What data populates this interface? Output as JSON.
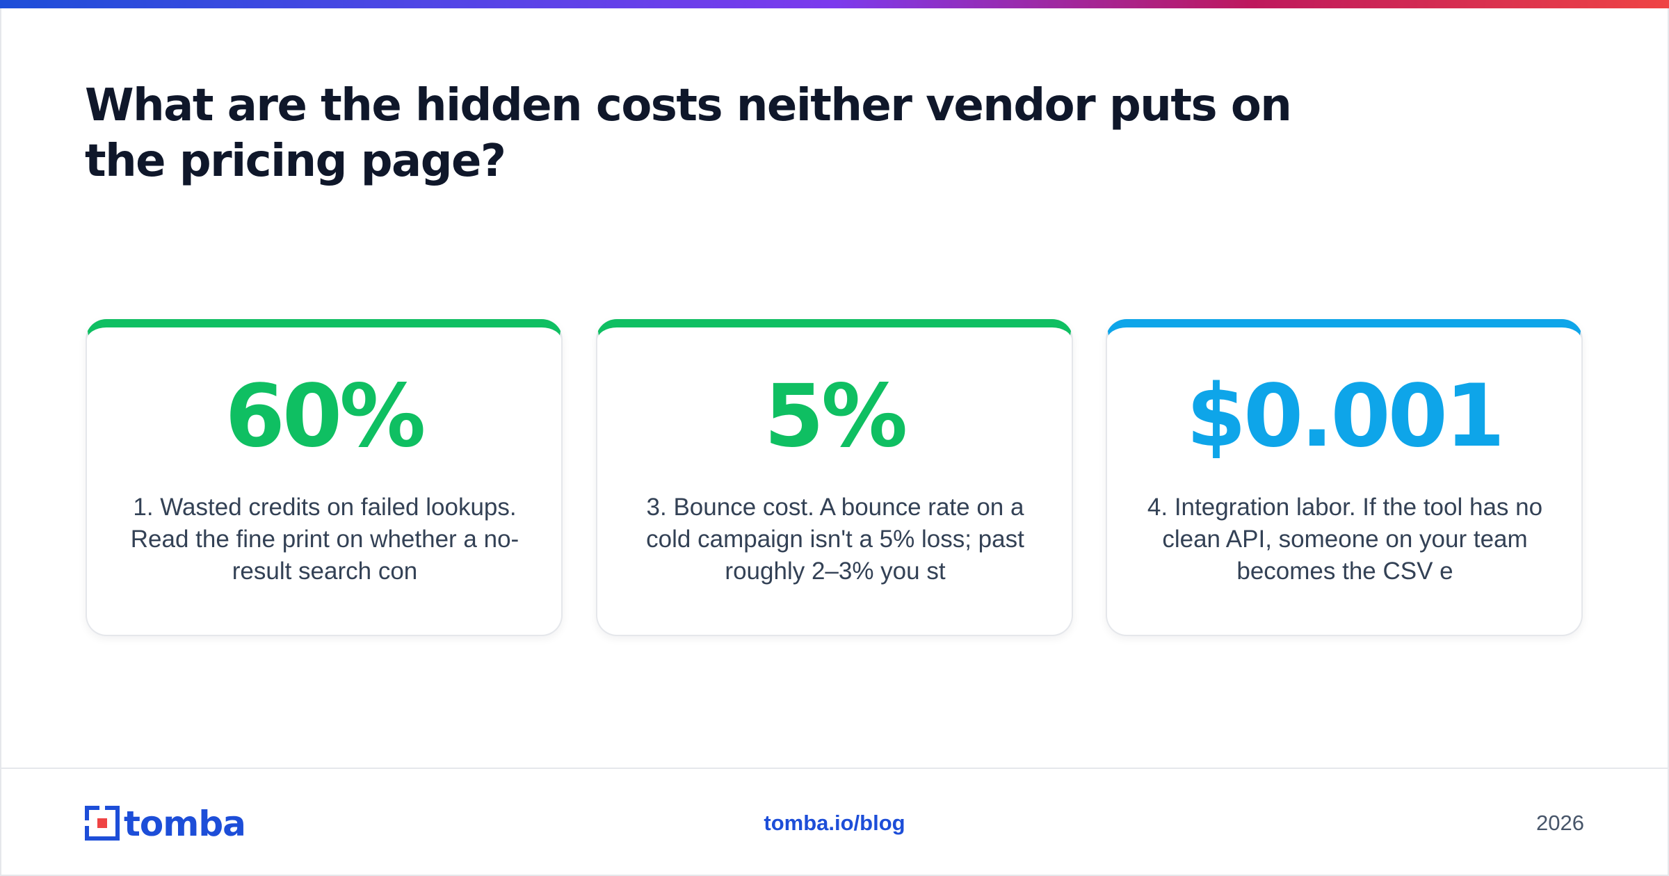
{
  "title": "What are the hidden costs neither vendor puts on the pricing page?",
  "cards": [
    {
      "stat": "60%",
      "accent": "#0fbf62",
      "text": "1. Wasted credits on failed lookups. Read the fine print on whether a no-result search con"
    },
    {
      "stat": "5%",
      "accent": "#0fbf62",
      "text": "3. Bounce cost. A bounce rate on a cold campaign isn't a 5% loss; past roughly 2–3% you st"
    },
    {
      "stat": "$0.001",
      "accent": "#0ea5e9",
      "text": "4. Integration labor. If the tool has no clean API, someone on your team becomes the CSV e"
    }
  ],
  "footer": {
    "logo_text": "tomba",
    "logo_icon": "tomba-logo-icon",
    "link": "tomba.io/blog",
    "year": "2026"
  },
  "colors": {
    "brand_blue": "#1d4ed8",
    "brand_red": "#ef4444",
    "title": "#0f172a"
  }
}
